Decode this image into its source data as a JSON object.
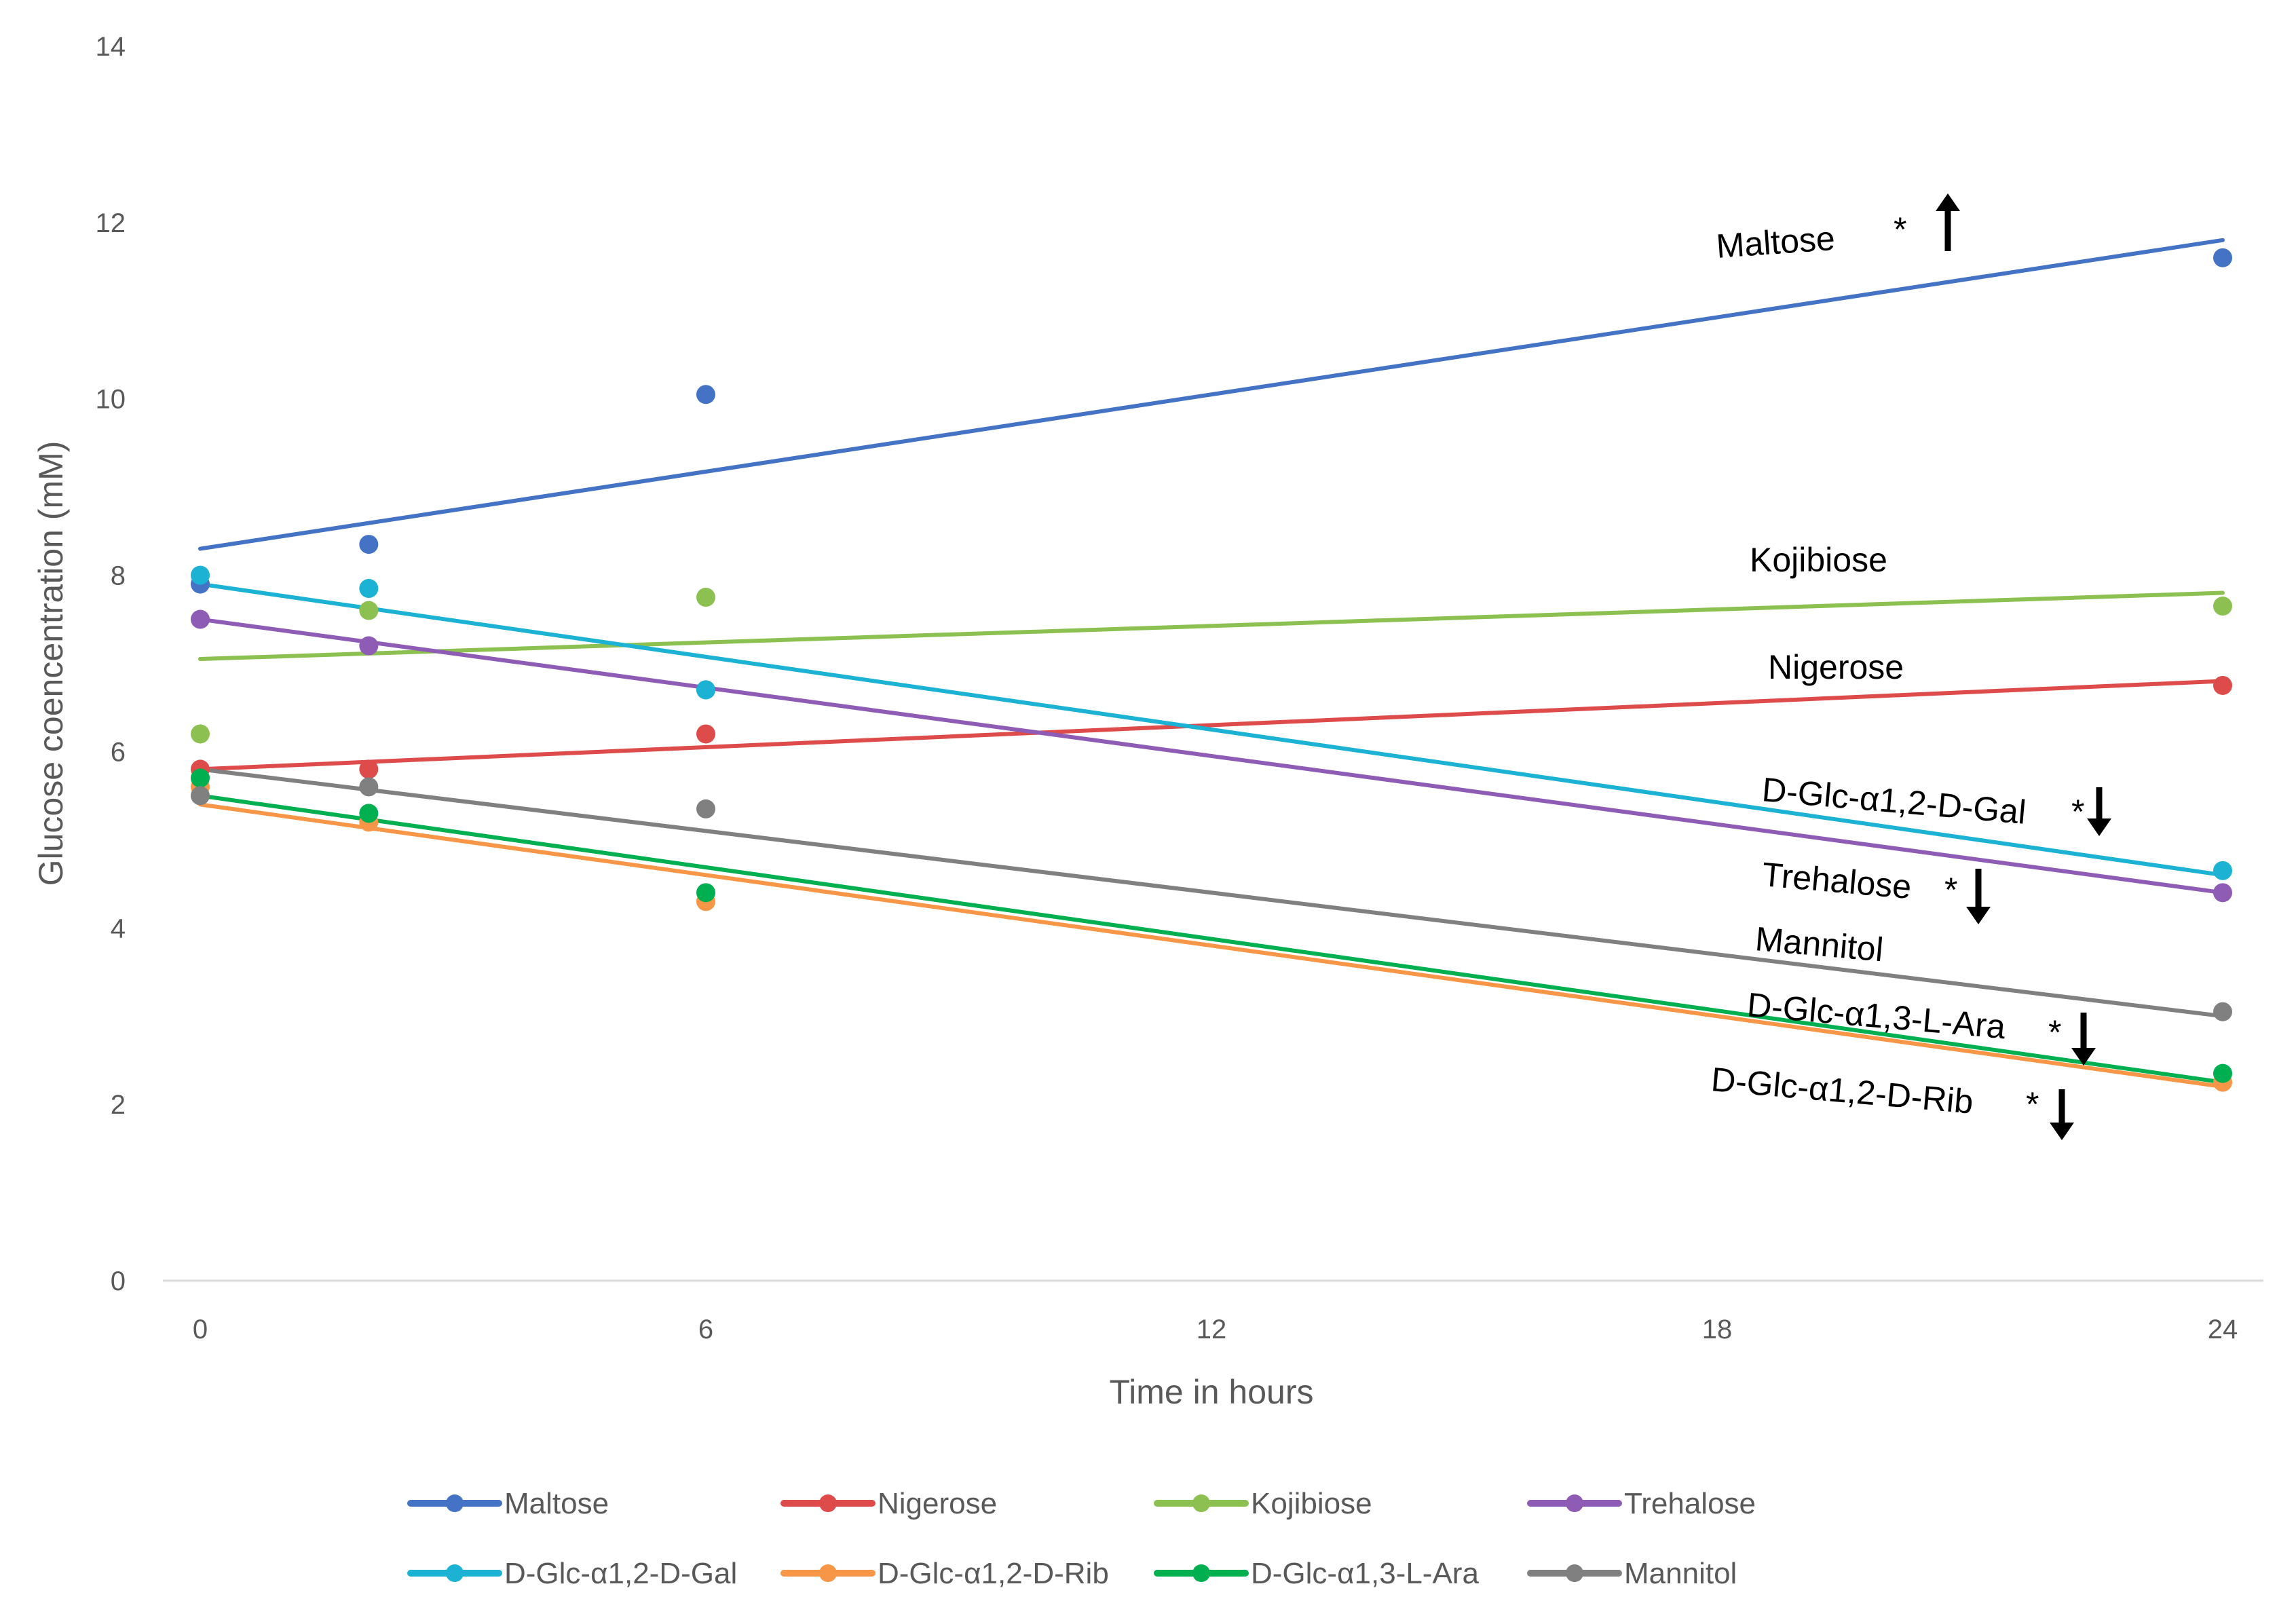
{
  "chart_data": {
    "type": "scatter",
    "title": "",
    "xlabel": "Time in hours",
    "ylabel": "Glucose coencentration (mM)",
    "xlim": [
      0,
      24
    ],
    "ylim": [
      0,
      14
    ],
    "xticks": [
      0,
      6,
      12,
      18,
      24
    ],
    "yticks": [
      0,
      2,
      4,
      6,
      8,
      10,
      12,
      14
    ],
    "grid": "horizontal baseline only",
    "legend_position": "bottom",
    "series": [
      {
        "name": "Maltose",
        "color": "#4472C4",
        "x": [
          0,
          2,
          6,
          24
        ],
        "y": [
          7.9,
          8.35,
          10.05,
          11.6
        ],
        "trend": [
          8.3,
          11.8
        ],
        "annotation": "Maltose",
        "significant": true,
        "arrow": "up"
      },
      {
        "name": "Nigerose",
        "color": "#DD4B4B",
        "x": [
          0,
          2,
          6,
          24
        ],
        "y": [
          5.8,
          5.8,
          6.2,
          6.75
        ],
        "trend": [
          5.8,
          6.8
        ],
        "annotation": "Nigerose",
        "significant": false,
        "arrow": ""
      },
      {
        "name": "Kojibiose",
        "color": "#8CC152",
        "x": [
          0,
          2,
          6,
          24
        ],
        "y": [
          6.2,
          7.6,
          7.75,
          7.65
        ],
        "trend": [
          7.05,
          7.8
        ],
        "annotation": "Kojibiose",
        "significant": false,
        "arrow": ""
      },
      {
        "name": "Trehalose",
        "color": "#8E5BB5",
        "x": [
          0,
          2,
          6,
          24
        ],
        "y": [
          7.5,
          7.2,
          6.7,
          4.4
        ],
        "trend": [
          7.5,
          4.4
        ],
        "annotation": "Trehalose",
        "significant": true,
        "arrow": "down"
      },
      {
        "name": "D-Glc-α1,2-D-Gal",
        "color": "#1BB2D4",
        "x": [
          0,
          2,
          6,
          24
        ],
        "y": [
          8.0,
          7.85,
          6.7,
          4.65
        ],
        "trend": [
          7.9,
          4.6
        ],
        "annotation": "D-Glc-α1,2-D-Gal",
        "significant": true,
        "arrow": "down"
      },
      {
        "name": "D-Glc-α1,2-D-Rib",
        "color": "#F79646",
        "x": [
          0,
          2,
          6,
          24
        ],
        "y": [
          5.6,
          5.2,
          4.3,
          2.25
        ],
        "trend": [
          5.4,
          2.2
        ],
        "annotation": "D-Glc-α1,2-D-Rib",
        "significant": true,
        "arrow": "down"
      },
      {
        "name": "D-Glc-α1,3-L-Ara",
        "color": "#00B050",
        "x": [
          0,
          2,
          6,
          24
        ],
        "y": [
          5.7,
          5.3,
          4.4,
          2.35
        ],
        "trend": [
          5.5,
          2.25
        ],
        "annotation": "D-Glc-α1,3-L-Ara",
        "significant": true,
        "arrow": "down"
      },
      {
        "name": "Mannitol",
        "color": "#808080",
        "x": [
          0,
          2,
          6,
          24
        ],
        "y": [
          5.5,
          5.6,
          5.35,
          3.05
        ],
        "trend": [
          5.8,
          3.0
        ],
        "annotation": "Mannitol",
        "significant": false,
        "arrow": ""
      }
    ],
    "significance_marker": "*"
  }
}
